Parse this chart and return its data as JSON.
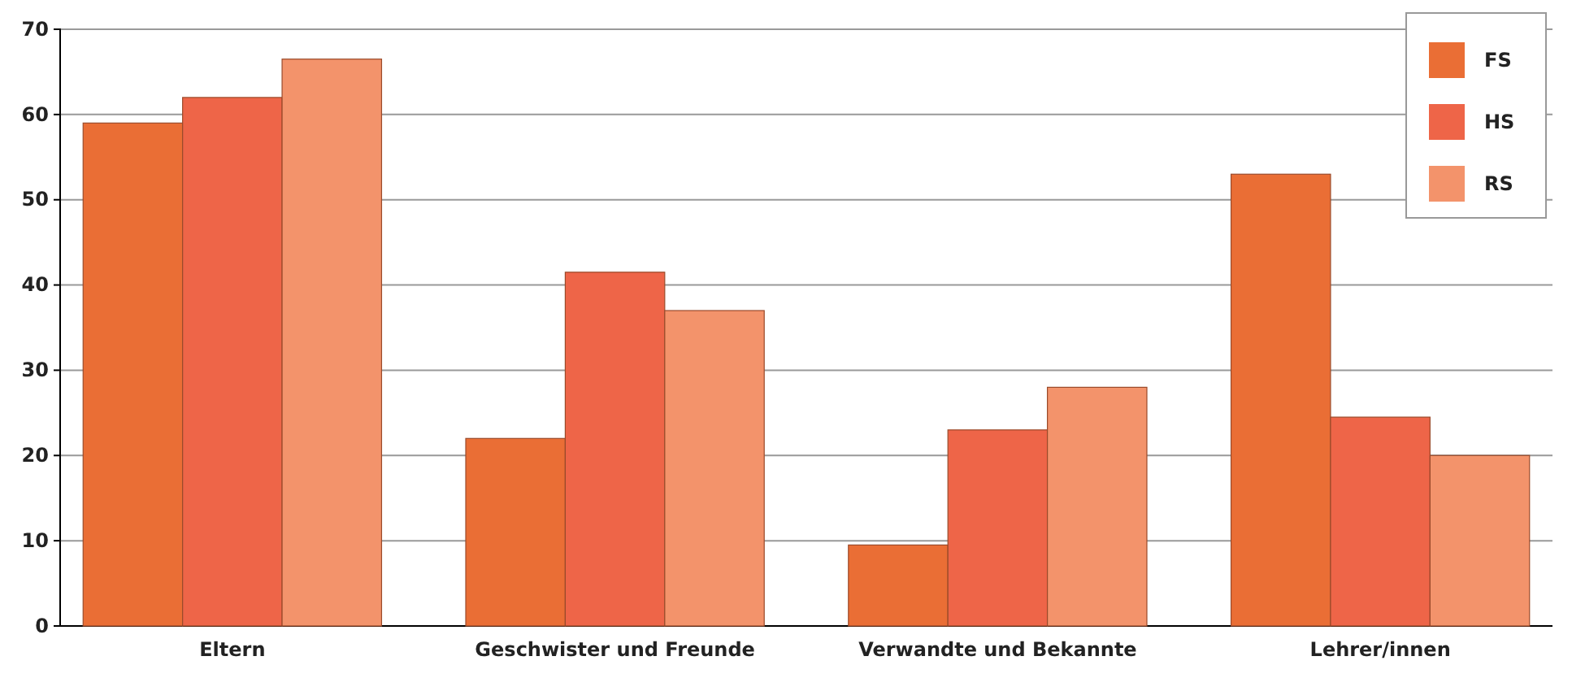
{
  "chart_data": {
    "type": "bar",
    "categories": [
      "Eltern",
      "Geschwister und Freunde",
      "Verwandte und Bekannte",
      "Lehrer/innen"
    ],
    "series": [
      {
        "name": "FS",
        "color": "#ea6e35",
        "values": [
          59,
          22,
          9.5,
          53
        ]
      },
      {
        "name": "HS",
        "color": "#ee6548",
        "values": [
          62,
          41.5,
          23,
          24.5
        ]
      },
      {
        "name": "RS",
        "color": "#f3936b",
        "values": [
          66.5,
          37,
          28,
          20
        ]
      }
    ],
    "ylim": [
      0,
      70
    ],
    "yticks": [
      0,
      10,
      20,
      30,
      40,
      50,
      60,
      70
    ],
    "grid": "y",
    "legend": "top right"
  }
}
